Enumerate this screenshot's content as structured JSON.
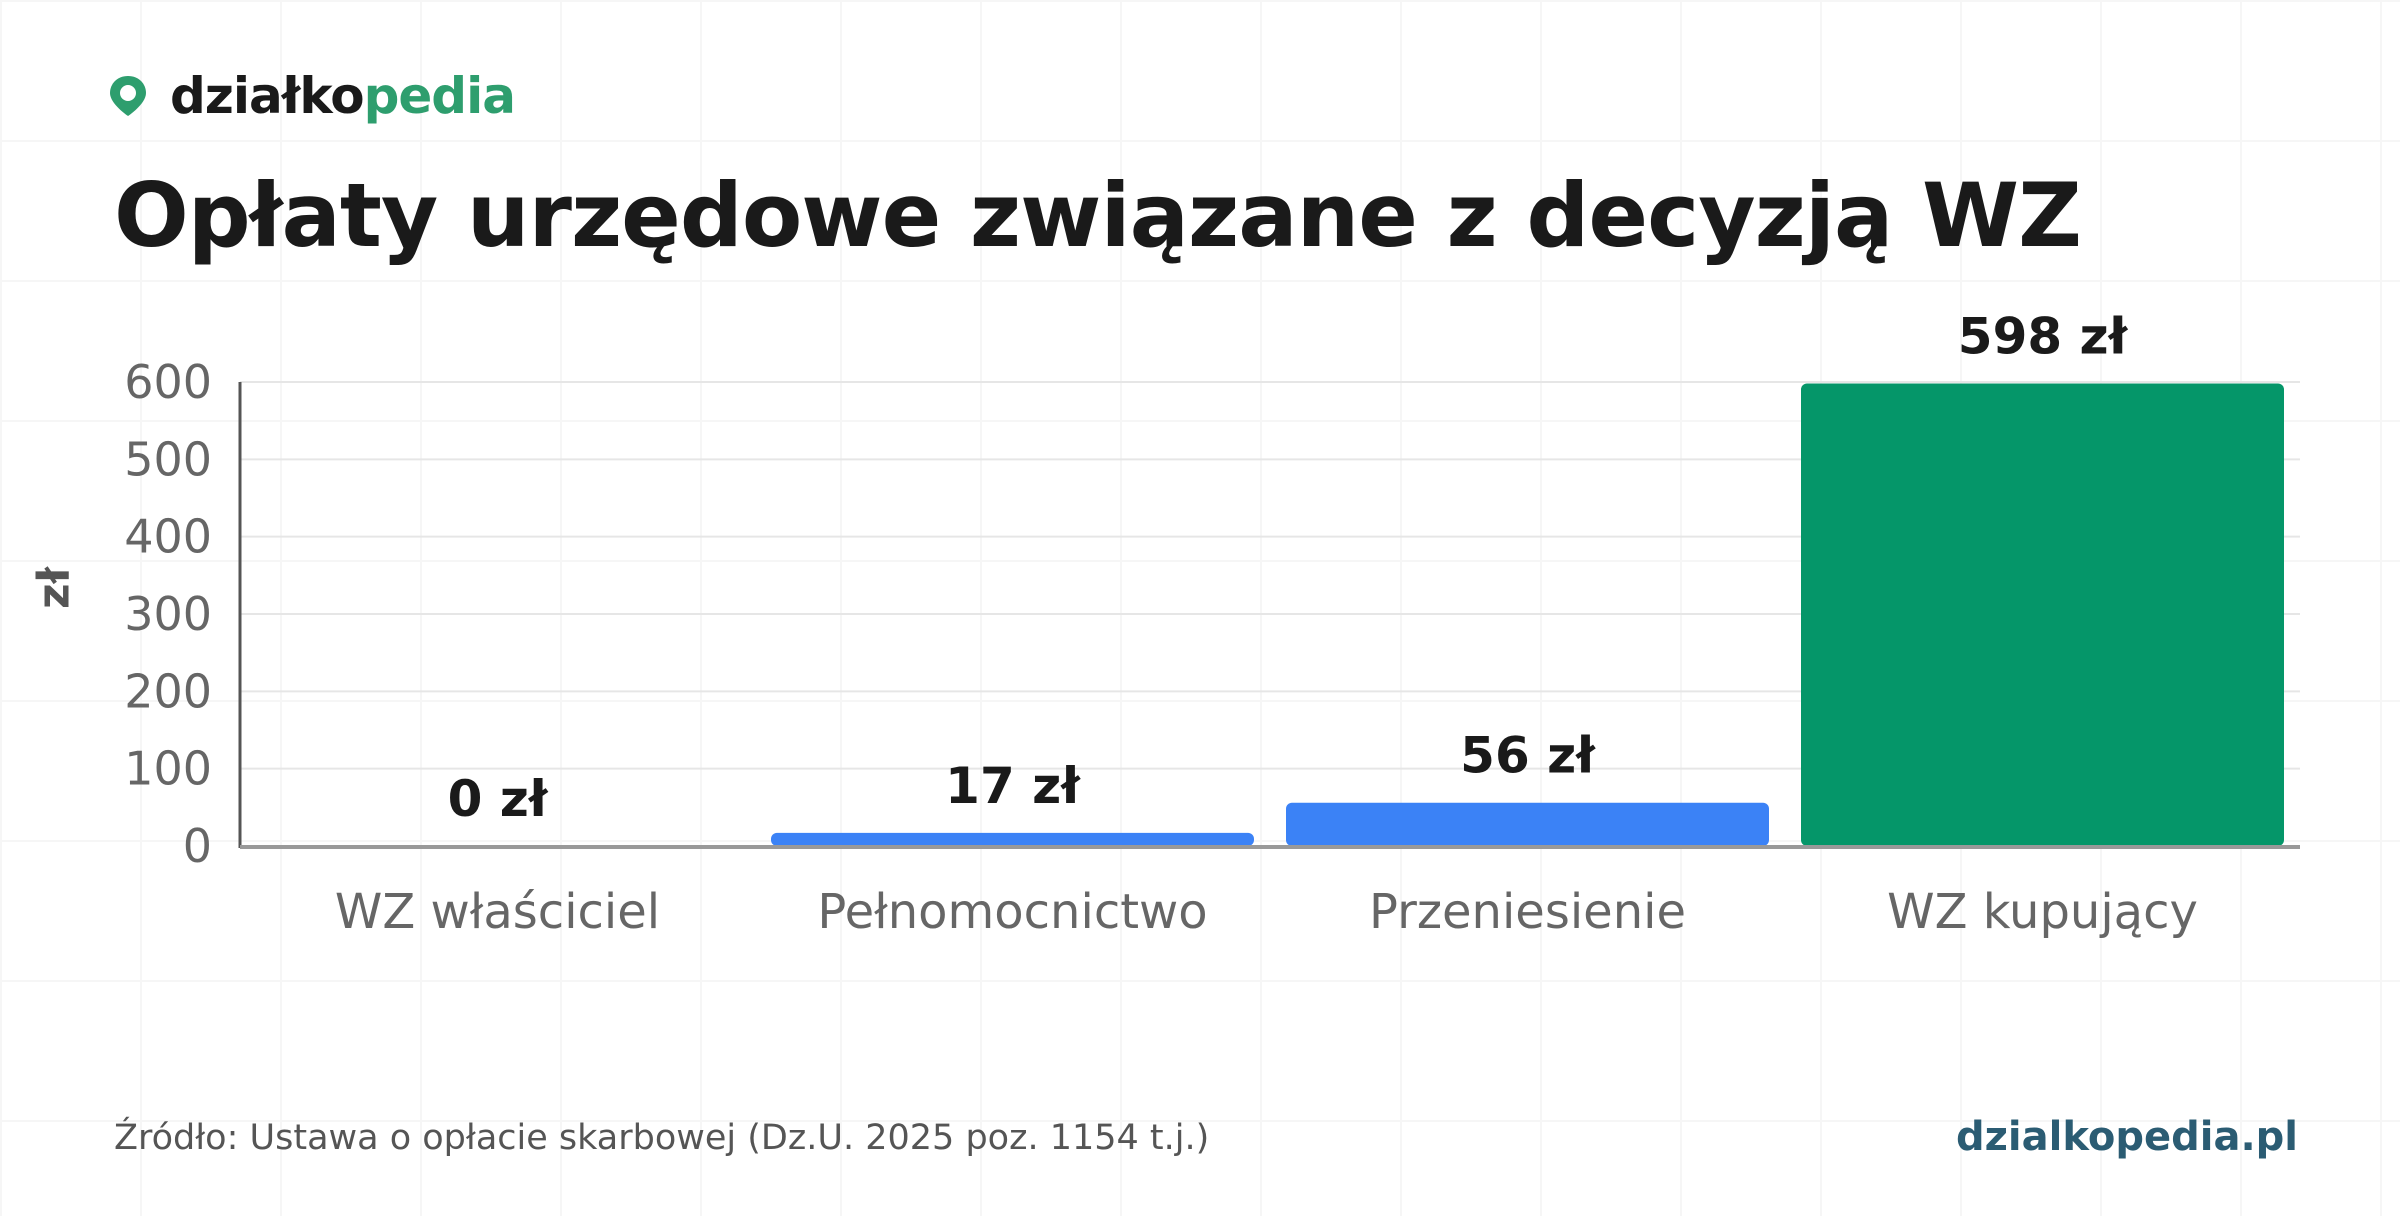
{
  "brand": {
    "logo_part1": "działko",
    "logo_part2": "pedia",
    "logo_icon": "map-pin-icon",
    "accent_color": "#2e9e6e"
  },
  "footer": {
    "source": "Źródło: Ustawa o opłacie skarbowej (Dz.U. 2025 poz. 1154 t.j.)",
    "site": "dzialkopedia.pl"
  },
  "chart_data": {
    "type": "bar",
    "title": "Opłaty urzędowe związane z decyzją WZ",
    "ylabel": "zł",
    "xlabel": "",
    "ylim": [
      0,
      600
    ],
    "yticks": [
      0,
      100,
      200,
      300,
      400,
      500,
      600
    ],
    "grid": true,
    "categories": [
      "WZ właściciel",
      "Pełnomocnictwo",
      "Przeniesienie",
      "WZ kupujący"
    ],
    "values": [
      0,
      17,
      56,
      598
    ],
    "value_labels": [
      "0 zł",
      "17 zł",
      "56 zł",
      "598 zł"
    ],
    "colors": [
      "#3b82f6",
      "#3b82f6",
      "#3b82f6",
      "#059669"
    ]
  }
}
